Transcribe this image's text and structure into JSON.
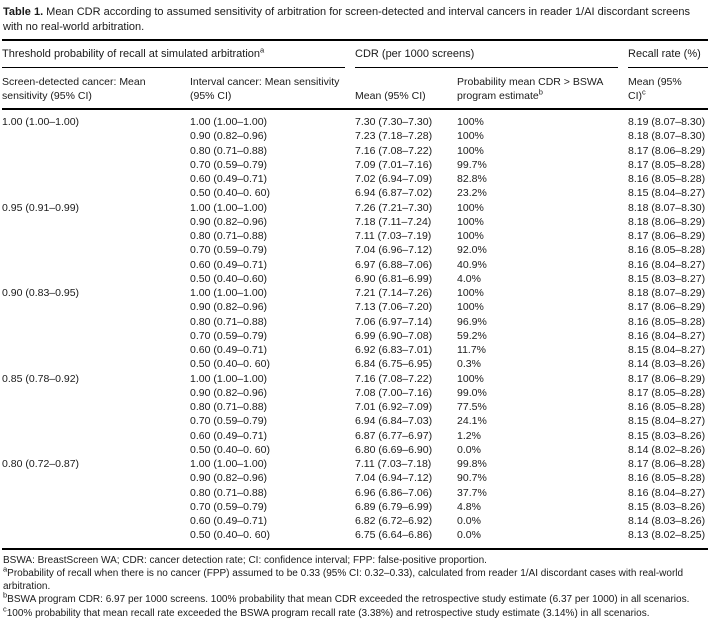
{
  "title": {
    "label": "Table 1.",
    "text": "Mean CDR according to assumed sensitivity of arbitration for screen-detected and interval cancers in reader 1/AI discordant screens with no real-world arbitration."
  },
  "header": {
    "spanners": [
      {
        "label": "Threshold probability of recall at simulated arbitration",
        "sup": "a"
      },
      {
        "label": "CDR (per 1000 screens)",
        "sup": ""
      },
      {
        "label": "Recall rate (%)",
        "sup": ""
      }
    ],
    "columns": [
      {
        "label": "Screen-detected cancer: Mean sensitivity (95% CI)",
        "sup": ""
      },
      {
        "label": "Interval cancer: Mean sensitivity (95% CI)",
        "sup": ""
      },
      {
        "label": "Mean (95% CI)",
        "sup": ""
      },
      {
        "label": "Probability mean CDR > BSWA program estimate",
        "sup": "b"
      },
      {
        "label": "Mean (95% CI)",
        "sup": "c"
      }
    ]
  },
  "table": {
    "groups": [
      {
        "screen_sensitivity": "1.00 (1.00–1.00)",
        "rows": [
          {
            "interval_sensitivity": "1.00 (1.00–1.00)",
            "cdr_mean": "7.30 (7.30–7.30)",
            "probability": "100%",
            "recall_mean": "8.19 (8.07–8.30)"
          },
          {
            "interval_sensitivity": "0.90 (0.82–0.96)",
            "cdr_mean": "7.23 (7.18–7.28)",
            "probability": "100%",
            "recall_mean": "8.18 (8.07–8.30)"
          },
          {
            "interval_sensitivity": "0.80 (0.71–0.88)",
            "cdr_mean": "7.16 (7.08–7.22)",
            "probability": "100%",
            "recall_mean": "8.17 (8.06–8.29)"
          },
          {
            "interval_sensitivity": "0.70 (0.59–0.79)",
            "cdr_mean": "7.09 (7.01–7.16)",
            "probability": "99.7%",
            "recall_mean": "8.17 (8.05–8.28)"
          },
          {
            "interval_sensitivity": "0.60 (0.49–0.71)",
            "cdr_mean": "7.02 (6.94–7.09)",
            "probability": "82.8%",
            "recall_mean": "8.16 (8.05–8.28)"
          },
          {
            "interval_sensitivity": "0.50 (0.40–0. 60)",
            "cdr_mean": "6.94 (6.87–7.02)",
            "probability": "23.2%",
            "recall_mean": "8.15 (8.04–8.27)"
          }
        ]
      },
      {
        "screen_sensitivity": "0.95 (0.91–0.99)",
        "rows": [
          {
            "interval_sensitivity": "1.00 (1.00–1.00)",
            "cdr_mean": "7.26 (7.21–7.30)",
            "probability": "100%",
            "recall_mean": "8.18 (8.07–8.30)"
          },
          {
            "interval_sensitivity": "0.90 (0.82–0.96)",
            "cdr_mean": "7.18 (7.11–7.24)",
            "probability": "100%",
            "recall_mean": "8.18 (8.06–8.29)"
          },
          {
            "interval_sensitivity": "0.80 (0.71–0.88)",
            "cdr_mean": "7.11 (7.03–7.19)",
            "probability": "100%",
            "recall_mean": "8.17 (8.06–8.29)"
          },
          {
            "interval_sensitivity": "0.70 (0.59–0.79)",
            "cdr_mean": "7.04 (6.96–7.12)",
            "probability": "92.0%",
            "recall_mean": "8.16 (8.05–8.28)"
          },
          {
            "interval_sensitivity": "0.60 (0.49–0.71)",
            "cdr_mean": "6.97 (6.88–7.06)",
            "probability": "40.9%",
            "recall_mean": "8.16 (8.04–8.27)"
          },
          {
            "interval_sensitivity": "0.50 (0.40–0.60)",
            "cdr_mean": "6.90 (6.81–6.99)",
            "probability": "4.0%",
            "recall_mean": "8.15 (8.03–8.27)"
          }
        ]
      },
      {
        "screen_sensitivity": "0.90 (0.83–0.95)",
        "rows": [
          {
            "interval_sensitivity": "1.00 (1.00–1.00)",
            "cdr_mean": "7.21 (7.14–7.26)",
            "probability": "100%",
            "recall_mean": "8.18 (8.07–8.29)"
          },
          {
            "interval_sensitivity": "0.90 (0.82–0.96)",
            "cdr_mean": "7.13 (7.06–7.20)",
            "probability": "100%",
            "recall_mean": "8.17 (8.06–8.29)"
          },
          {
            "interval_sensitivity": "0.80 (0.71–0.88)",
            "cdr_mean": "7.06 (6.97–7.14)",
            "probability": "96.9%",
            "recall_mean": "8.16 (8.05–8.28)"
          },
          {
            "interval_sensitivity": "0.70 (0.59–0.79)",
            "cdr_mean": "6.99 (6.90–7.08)",
            "probability": "59.2%",
            "recall_mean": "8.16 (8.04–8.27)"
          },
          {
            "interval_sensitivity": "0.60 (0.49–0.71)",
            "cdr_mean": "6.92 (6.83–7.01)",
            "probability": "11.7%",
            "recall_mean": "8.15 (8.04–8.27)"
          },
          {
            "interval_sensitivity": "0.50 (0.40–0. 60)",
            "cdr_mean": "6.84 (6.75–6.95)",
            "probability": "0.3%",
            "recall_mean": "8.14 (8.03–8.26)"
          }
        ]
      },
      {
        "screen_sensitivity": "0.85 (0.78–0.92)",
        "rows": [
          {
            "interval_sensitivity": "1.00 (1.00–1.00)",
            "cdr_mean": "7.16 (7.08–7.22)",
            "probability": "100%",
            "recall_mean": "8.17 (8.06–8.29)"
          },
          {
            "interval_sensitivity": "0.90 (0.82–0.96)",
            "cdr_mean": "7.08 (7.00–7.16)",
            "probability": "99.0%",
            "recall_mean": "8.17 (8.05–8.28)"
          },
          {
            "interval_sensitivity": "0.80 (0.71–0.88)",
            "cdr_mean": "7.01 (6.92–7.09)",
            "probability": "77.5%",
            "recall_mean": "8.16 (8.05–8.28)"
          },
          {
            "interval_sensitivity": "0.70 (0.59–0.79)",
            "cdr_mean": "6.94 (6.84–7.03)",
            "probability": "24.1%",
            "recall_mean": "8.15 (8.04–8.27)"
          },
          {
            "interval_sensitivity": "0.60 (0.49–0.71)",
            "cdr_mean": "6.87 (6.77–6.97)",
            "probability": "1.2%",
            "recall_mean": "8.15 (8.03–8.26)"
          },
          {
            "interval_sensitivity": "0.50 (0.40–0. 60)",
            "cdr_mean": "6.80 (6.69–6.90)",
            "probability": "0.0%",
            "recall_mean": "8.14 (8.02–8.26)"
          }
        ]
      },
      {
        "screen_sensitivity": "0.80 (0.72–0.87)",
        "rows": [
          {
            "interval_sensitivity": "1.00 (1.00–1.00)",
            "cdr_mean": "7.11 (7.03–7.18)",
            "probability": "99.8%",
            "recall_mean": "8.17 (8.06–8.28)"
          },
          {
            "interval_sensitivity": "0.90 (0.82–0.96)",
            "cdr_mean": "7.04 (6.94–7.12)",
            "probability": "90.7%",
            "recall_mean": "8.16 (8.05–8.28)"
          },
          {
            "interval_sensitivity": "0.80 (0.71–0.88)",
            "cdr_mean": "6.96 (6.86–7.06)",
            "probability": "37.7%",
            "recall_mean": "8.16 (8.04–8.27)"
          },
          {
            "interval_sensitivity": "0.70 (0.59–0.79)",
            "cdr_mean": "6.89 (6.79–6.99)",
            "probability": "4.8%",
            "recall_mean": "8.15 (8.03–8.26)"
          },
          {
            "interval_sensitivity": "0.60 (0.49–0.71)",
            "cdr_mean": "6.82 (6.72–6.92)",
            "probability": "0.0%",
            "recall_mean": "8.14 (8.03–8.26)"
          },
          {
            "interval_sensitivity": "0.50 (0.40–0. 60)",
            "cdr_mean": "6.75 (6.64–6.86)",
            "probability": "0.0%",
            "recall_mean": "8.13 (8.02–8.25)"
          }
        ]
      }
    ]
  },
  "footnotes": [
    {
      "sup": "",
      "text": "BSWA: BreastScreen WA; CDR: cancer detection rate; CI: confidence interval; FPP: false-positive proportion."
    },
    {
      "sup": "a",
      "text": "Probability of recall when there is no cancer (FPP) assumed to be 0.33 (95% CI: 0.32–0.33), calculated from reader 1/AI discordant cases with real-world arbitration."
    },
    {
      "sup": "b",
      "text": "BSWA program CDR: 6.97 per 1000 screens. 100% probability that mean CDR exceeded the retrospective study estimate (6.37 per 1000) in all scenarios."
    },
    {
      "sup": "c",
      "text": "100% probability that mean recall rate exceeded the BSWA program recall rate (3.38%) and retrospective study estimate (3.14%) in all scenarios."
    }
  ]
}
